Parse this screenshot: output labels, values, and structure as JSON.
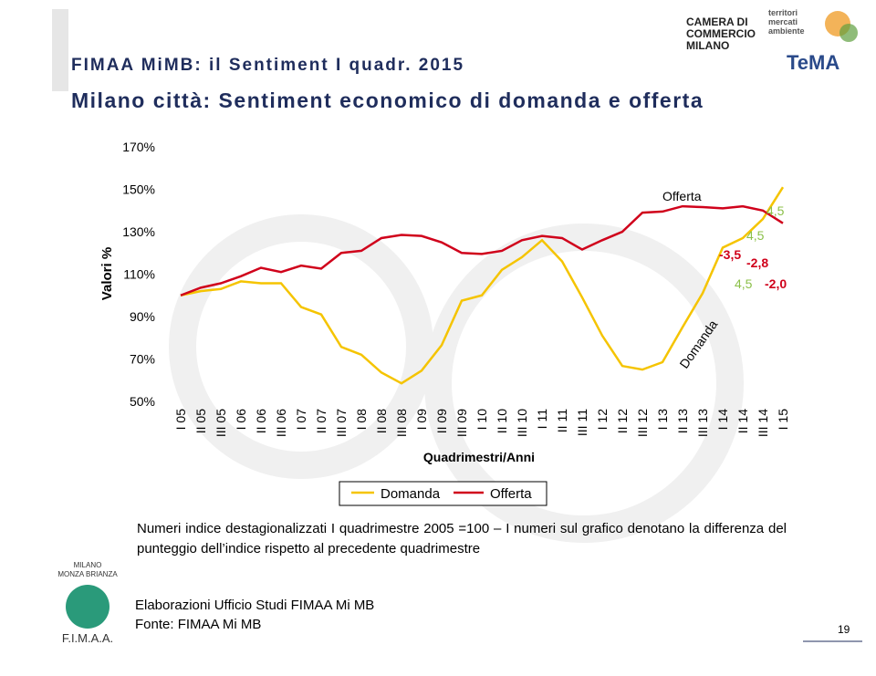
{
  "header": {
    "subtitle": "FIMAA MiMB: il Sentiment I quadr. 2015",
    "title": "Milano città: Sentiment economico di domanda e offerta"
  },
  "logos": {
    "chamber": [
      "CAMERA DI",
      "COMMERCIO",
      "MILANO"
    ],
    "tema_tagline": [
      "territori",
      "mercati",
      "ambiente"
    ],
    "tema": "TeMA",
    "fimaa_area": [
      "MILANO",
      "MONZA BRIANZA"
    ],
    "fimaa": "F.I.M.A.A."
  },
  "chart_data": {
    "type": "line",
    "y_label": "Valori %",
    "x_label": "Quadrimestri/Anni",
    "categories": [
      "I 05",
      "II 05",
      "III 05",
      "I 06",
      "II 06",
      "III 06",
      "I 07",
      "II 07",
      "III 07",
      "I 08",
      "II 08",
      "III 08",
      "I 09",
      "II 09",
      "III 09",
      "I 10",
      "II 10",
      "III 10",
      "I 11",
      "II 11",
      "III 11",
      "I 12",
      "II 12",
      "III 12",
      "I 13",
      "II 13",
      "III 13",
      "I 14",
      "II 14",
      "III 14",
      "I 15"
    ],
    "series": [
      {
        "name": "Domanda",
        "color": "#f5c400",
        "values": [
          100,
          102,
          103,
          106.6,
          105.7,
          105.7,
          94.5,
          91,
          75.7,
          72,
          63.6,
          58.5,
          64.5,
          76.5,
          97.5,
          100,
          112,
          118,
          126,
          116,
          99,
          81,
          66.7,
          65,
          68.5,
          85,
          101,
          122.5,
          127,
          136,
          151
        ]
      },
      {
        "name": "Offerta",
        "color": "#d0021b",
        "values": [
          100,
          103.6,
          105.7,
          109,
          113,
          111,
          114,
          112.6,
          120,
          121,
          127,
          128.5,
          128,
          125,
          120,
          119.5,
          121,
          126,
          128,
          127,
          121.6,
          126,
          130,
          139,
          139.5,
          142,
          141.6,
          141,
          142,
          140,
          134
        ]
      }
    ],
    "ylim": [
      50,
      170
    ],
    "yticks": [
      {
        "value": 50,
        "label": "50%"
      },
      {
        "value": 70,
        "label": "70%"
      },
      {
        "value": 90,
        "label": "90%"
      },
      {
        "value": 110,
        "label": "110%"
      },
      {
        "value": 130,
        "label": "130%"
      },
      {
        "value": 150,
        "label": "150%"
      },
      {
        "value": 170,
        "label": "170%"
      }
    ],
    "grid": false,
    "annotations": [
      {
        "text": "Offerta",
        "color": "#000000"
      },
      {
        "text": "4,5",
        "color": "#8cc04a"
      },
      {
        "text": "4,5",
        "color": "#8cc04a"
      },
      {
        "text": "-3,5",
        "color": "#d0021b"
      },
      {
        "text": "-2,8",
        "color": "#d0021b"
      },
      {
        "text": "4,5",
        "color": "#8cc04a"
      },
      {
        "text": "-2,0",
        "color": "#d0021b"
      },
      {
        "text": "Domanda",
        "color": "#000000"
      }
    ]
  },
  "notes": "Numeri indice destagionalizzati I quadrimestre 2005 =100 – I numeri sul grafico denotano la differenza del punteggio dell’indice rispetto al precedente quadrimestre",
  "footer": {
    "source_lines": [
      "Elaborazioni  Ufficio Studi FIMAA Mi MB",
      "Fonte: FIMAA Mi MB"
    ],
    "page": "19"
  }
}
